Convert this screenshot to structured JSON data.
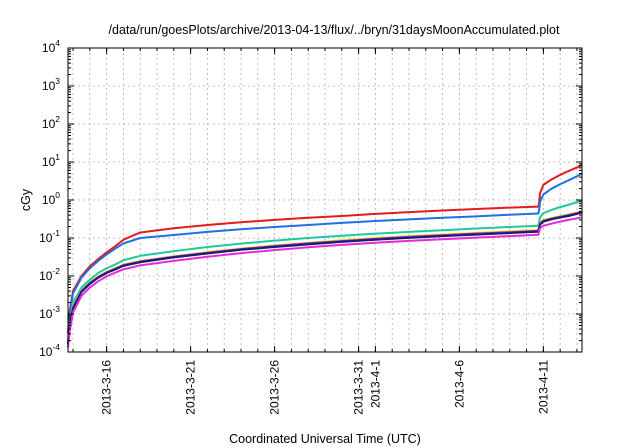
{
  "chart_data": {
    "type": "line",
    "title": "/data/run/goesPlots/archive/2013-04-13/flux/../bryn/31daysMoonAccumulated.plot",
    "xlabel": "Coordinated Universal Time (UTC)",
    "ylabel": "cGy",
    "yscale": "log",
    "ylim": [
      0.0001,
      10000
    ],
    "xlim": [
      13.7,
      44.3
    ],
    "grid": true,
    "legend": "none",
    "y_ticks": [
      {
        "base": "10",
        "exp": "-4"
      },
      {
        "base": "10",
        "exp": "-3"
      },
      {
        "base": "10",
        "exp": "-2"
      },
      {
        "base": "10",
        "exp": "-1"
      },
      {
        "base": "10",
        "exp": "0"
      },
      {
        "base": "10",
        "exp": "1"
      },
      {
        "base": "10",
        "exp": "2"
      },
      {
        "base": "10",
        "exp": "3"
      },
      {
        "base": "10",
        "exp": "4"
      }
    ],
    "x_ticks": [
      {
        "label": "2013-3-16",
        "x": 16
      },
      {
        "label": "2013-3-21",
        "x": 21
      },
      {
        "label": "2013-3-26",
        "x": 26
      },
      {
        "label": "2013-3-31",
        "x": 31
      },
      {
        "label": "2013-4-1",
        "x": 32
      },
      {
        "label": "2013-4-6",
        "x": 37
      },
      {
        "label": "2013-4-11",
        "x": 42
      }
    ],
    "series": [
      {
        "color": "#e41a1c",
        "x": [
          13.7,
          13.8,
          14.0,
          14.5,
          15.0,
          15.5,
          16.0,
          16.5,
          17.0,
          18,
          20,
          22,
          24,
          26,
          28,
          30,
          32,
          34,
          36,
          38,
          40,
          41.7,
          41.75,
          41.8,
          42.0,
          42.5,
          43.0,
          43.5,
          44.0,
          44.3
        ],
        "y": [
          0.0003,
          0.0012,
          0.004,
          0.01,
          0.018,
          0.028,
          0.042,
          0.06,
          0.09,
          0.14,
          0.18,
          0.22,
          0.26,
          0.3,
          0.34,
          0.38,
          0.43,
          0.48,
          0.53,
          0.58,
          0.63,
          0.67,
          0.9,
          1.5,
          2.5,
          3.5,
          4.6,
          5.8,
          7.2,
          8.4
        ]
      },
      {
        "color": "#1f6fe6",
        "x": [
          13.7,
          13.8,
          14.0,
          14.5,
          15.0,
          15.5,
          16.0,
          16.5,
          17.0,
          18,
          20,
          22,
          24,
          26,
          28,
          30,
          32,
          34,
          36,
          38,
          40,
          41.7,
          41.75,
          41.8,
          42.0,
          42.5,
          43.0,
          43.5,
          44.0,
          44.3
        ],
        "y": [
          0.0003,
          0.001,
          0.0035,
          0.009,
          0.016,
          0.025,
          0.037,
          0.052,
          0.072,
          0.1,
          0.12,
          0.145,
          0.17,
          0.195,
          0.22,
          0.25,
          0.28,
          0.31,
          0.34,
          0.37,
          0.41,
          0.44,
          0.55,
          0.9,
          1.4,
          2.0,
          2.6,
          3.3,
          4.2,
          5.0
        ]
      },
      {
        "color": "#1cc9a0",
        "x": [
          13.7,
          13.8,
          14.0,
          14.5,
          15.0,
          15.5,
          16.0,
          16.5,
          17.0,
          18,
          20,
          22,
          24,
          26,
          28,
          30,
          32,
          34,
          36,
          38,
          40,
          41.7,
          41.75,
          41.8,
          42.0,
          42.5,
          43.0,
          43.5,
          44.0,
          44.3
        ],
        "y": [
          0.0002,
          0.0006,
          0.002,
          0.005,
          0.008,
          0.012,
          0.016,
          0.02,
          0.026,
          0.034,
          0.045,
          0.058,
          0.071,
          0.085,
          0.1,
          0.115,
          0.13,
          0.145,
          0.16,
          0.178,
          0.195,
          0.21,
          0.27,
          0.35,
          0.45,
          0.55,
          0.65,
          0.75,
          0.88,
          0.97
        ]
      },
      {
        "color": "#f2e600",
        "x": [
          13.7,
          13.8,
          14.0,
          14.5,
          15.0,
          15.5,
          16.0,
          16.5,
          17.0,
          18,
          20,
          22,
          24,
          26,
          28,
          30,
          32,
          34,
          36,
          38,
          40,
          41.7,
          41.75,
          41.8,
          42.0,
          42.5,
          43.0,
          43.5,
          44.0,
          44.3
        ],
        "y": [
          0.00018,
          0.0005,
          0.0016,
          0.0042,
          0.0068,
          0.0098,
          0.013,
          0.016,
          0.02,
          0.025,
          0.033,
          0.043,
          0.053,
          0.064,
          0.075,
          0.087,
          0.1,
          0.112,
          0.124,
          0.137,
          0.15,
          0.162,
          0.2,
          0.25,
          0.3,
          0.34,
          0.38,
          0.42,
          0.47,
          0.51
        ]
      },
      {
        "color": "#7a1fd1",
        "x": [
          13.7,
          13.8,
          14.0,
          14.5,
          15.0,
          15.5,
          16.0,
          16.5,
          17.0,
          18,
          20,
          22,
          24,
          26,
          28,
          30,
          32,
          34,
          36,
          38,
          40,
          41.7,
          41.75,
          41.8,
          42.0,
          42.5,
          43.0,
          43.5,
          44.0,
          44.3
        ],
        "y": [
          0.00017,
          0.00048,
          0.0015,
          0.004,
          0.0065,
          0.0094,
          0.0125,
          0.0155,
          0.0193,
          0.024,
          0.032,
          0.041,
          0.051,
          0.061,
          0.072,
          0.083,
          0.095,
          0.107,
          0.118,
          0.13,
          0.142,
          0.154,
          0.19,
          0.24,
          0.285,
          0.325,
          0.36,
          0.4,
          0.45,
          0.49
        ]
      },
      {
        "color": "#1a1a7a",
        "x": [
          13.7,
          13.8,
          14.0,
          14.5,
          15.0,
          15.5,
          16.0,
          16.5,
          17.0,
          18,
          20,
          22,
          24,
          26,
          28,
          30,
          32,
          34,
          36,
          38,
          40,
          41.7,
          41.75,
          41.8,
          42.0,
          42.5,
          43.0,
          43.5,
          44.0,
          44.3
        ],
        "y": [
          0.00016,
          0.00045,
          0.0014,
          0.0038,
          0.0062,
          0.009,
          0.012,
          0.0148,
          0.0185,
          0.023,
          0.031,
          0.039,
          0.049,
          0.058,
          0.068,
          0.079,
          0.09,
          0.101,
          0.112,
          0.123,
          0.135,
          0.146,
          0.18,
          0.225,
          0.27,
          0.31,
          0.345,
          0.38,
          0.43,
          0.47
        ]
      },
      {
        "color": "#e62bd6",
        "x": [
          13.7,
          13.8,
          14.0,
          14.5,
          15.0,
          15.5,
          16.0,
          16.5,
          17.0,
          18,
          20,
          22,
          24,
          26,
          28,
          30,
          32,
          34,
          36,
          38,
          40,
          41.7,
          41.75,
          41.8,
          42.0,
          42.5,
          43.0,
          43.5,
          44.0,
          44.3
        ],
        "y": [
          0.00013,
          0.00035,
          0.0011,
          0.003,
          0.005,
          0.0073,
          0.0098,
          0.0122,
          0.015,
          0.019,
          0.025,
          0.032,
          0.04,
          0.048,
          0.057,
          0.066,
          0.075,
          0.084,
          0.093,
          0.102,
          0.112,
          0.122,
          0.15,
          0.18,
          0.21,
          0.24,
          0.27,
          0.3,
          0.33,
          0.35
        ]
      }
    ]
  }
}
